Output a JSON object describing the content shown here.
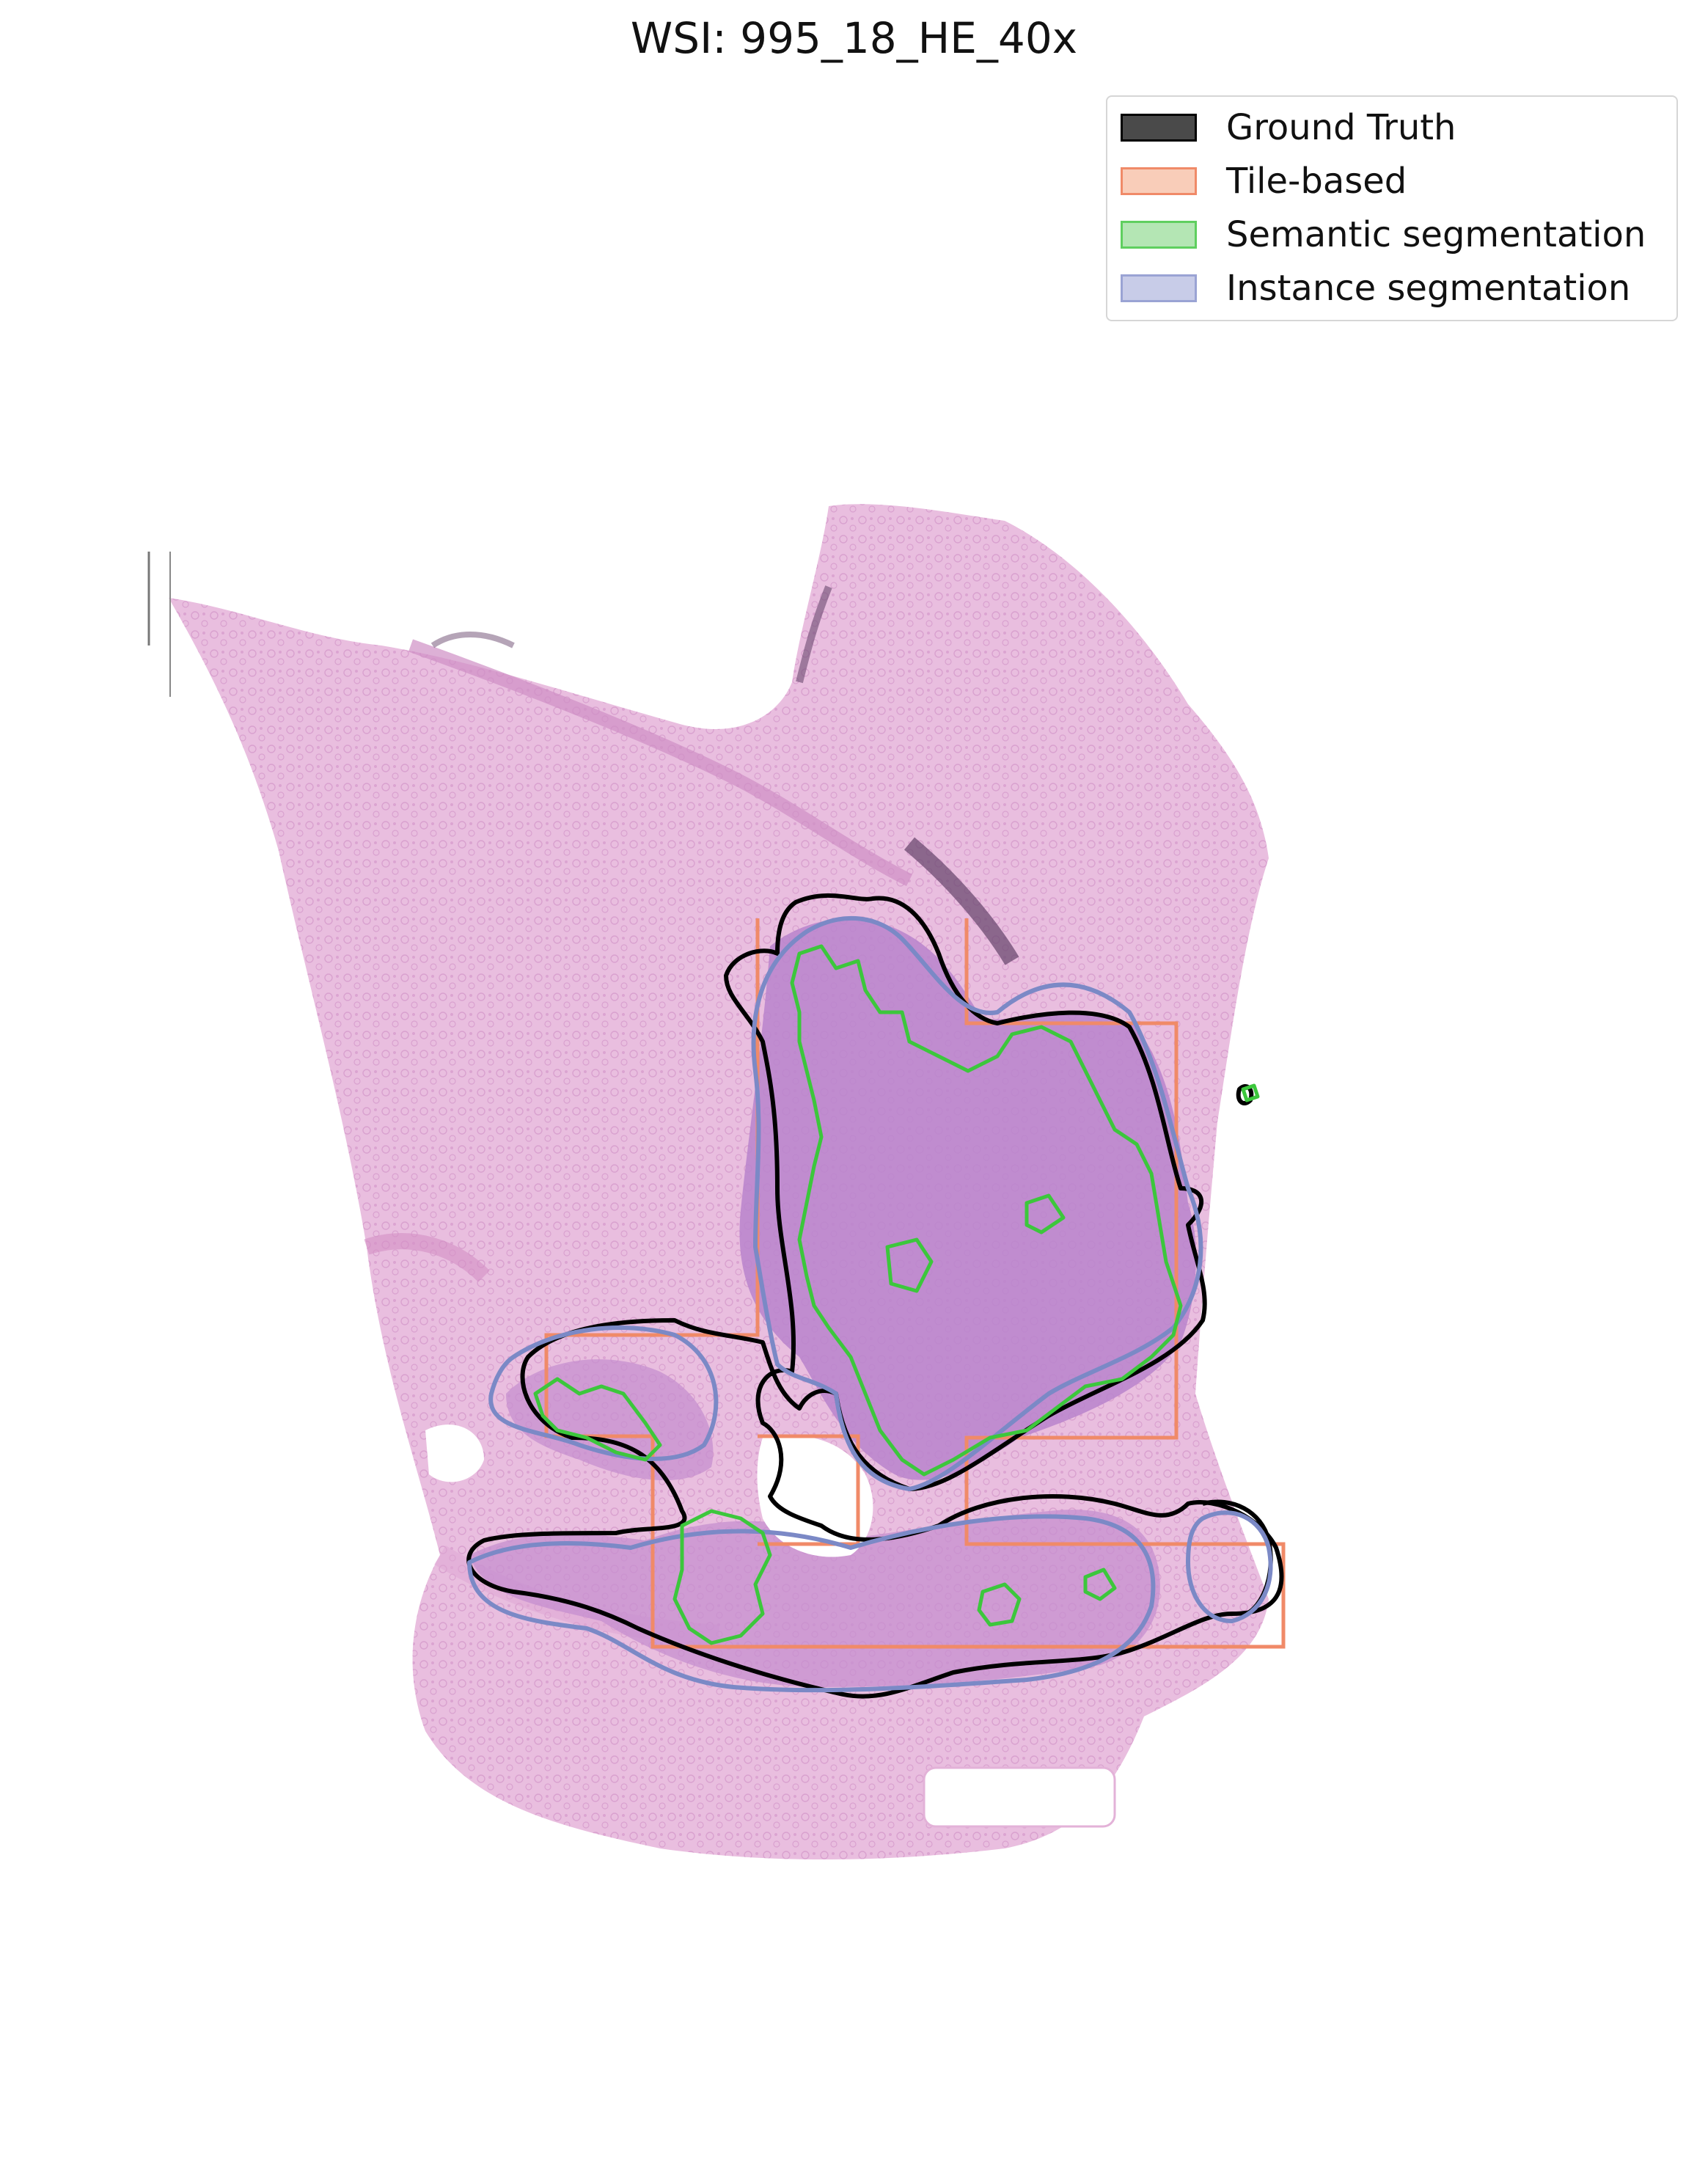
{
  "title": "WSI: 995_18_HE_40x",
  "legend": [
    {
      "label": "Ground Truth",
      "fill": "#4a4a4a",
      "edge": "#000000"
    },
    {
      "label": "Tile-based",
      "fill": "#f9cdb9",
      "edge": "#f08a68"
    },
    {
      "label": "Semantic segmentation",
      "fill": "#b4e6b4",
      "edge": "#5fcf5f"
    },
    {
      "label": "Instance segmentation",
      "fill": "#c8cce8",
      "edge": "#9aa3d4"
    }
  ],
  "colors": {
    "tissue": "#e7b9dc",
    "tissue_dark": "#c889c6",
    "tumor": "#b07cc9",
    "ground_truth": "#000000",
    "tile_based": "#f08a68",
    "semantic": "#3cc73c",
    "instance": "#7b89c6"
  }
}
